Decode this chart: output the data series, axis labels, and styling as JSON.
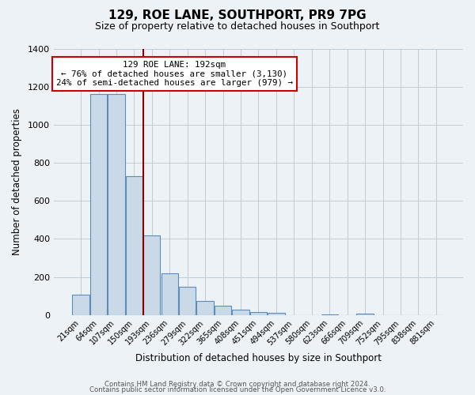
{
  "title": "129, ROE LANE, SOUTHPORT, PR9 7PG",
  "subtitle": "Size of property relative to detached houses in Southport",
  "xlabel": "Distribution of detached houses by size in Southport",
  "ylabel": "Number of detached properties",
  "categories": [
    "21sqm",
    "64sqm",
    "107sqm",
    "150sqm",
    "193sqm",
    "236sqm",
    "279sqm",
    "322sqm",
    "365sqm",
    "408sqm",
    "451sqm",
    "494sqm",
    "537sqm",
    "580sqm",
    "623sqm",
    "666sqm",
    "709sqm",
    "752sqm",
    "795sqm",
    "838sqm",
    "881sqm"
  ],
  "values": [
    108,
    1160,
    1160,
    730,
    420,
    220,
    148,
    75,
    50,
    30,
    15,
    10,
    0,
    0,
    5,
    0,
    8,
    0,
    0,
    0,
    0
  ],
  "bar_color": "#c9d9e8",
  "bar_edge_color": "#5b8db8",
  "vline_x": 3.5,
  "vline_color": "#8b0000",
  "annotation_line1": "129 ROE LANE: 192sqm",
  "annotation_line2": "← 76% of detached houses are smaller (3,130)",
  "annotation_line3": "24% of semi-detached houses are larger (979) →",
  "annotation_box_facecolor": "#ffffff",
  "annotation_box_edgecolor": "#cc0000",
  "ylim": [
    0,
    1400
  ],
  "yticks": [
    0,
    200,
    400,
    600,
    800,
    1000,
    1200,
    1400
  ],
  "footer1": "Contains HM Land Registry data © Crown copyright and database right 2024.",
  "footer2": "Contains public sector information licensed under the Open Government Licence v3.0.",
  "bg_color": "#edf2f7",
  "grid_color": "#c0cdd8"
}
